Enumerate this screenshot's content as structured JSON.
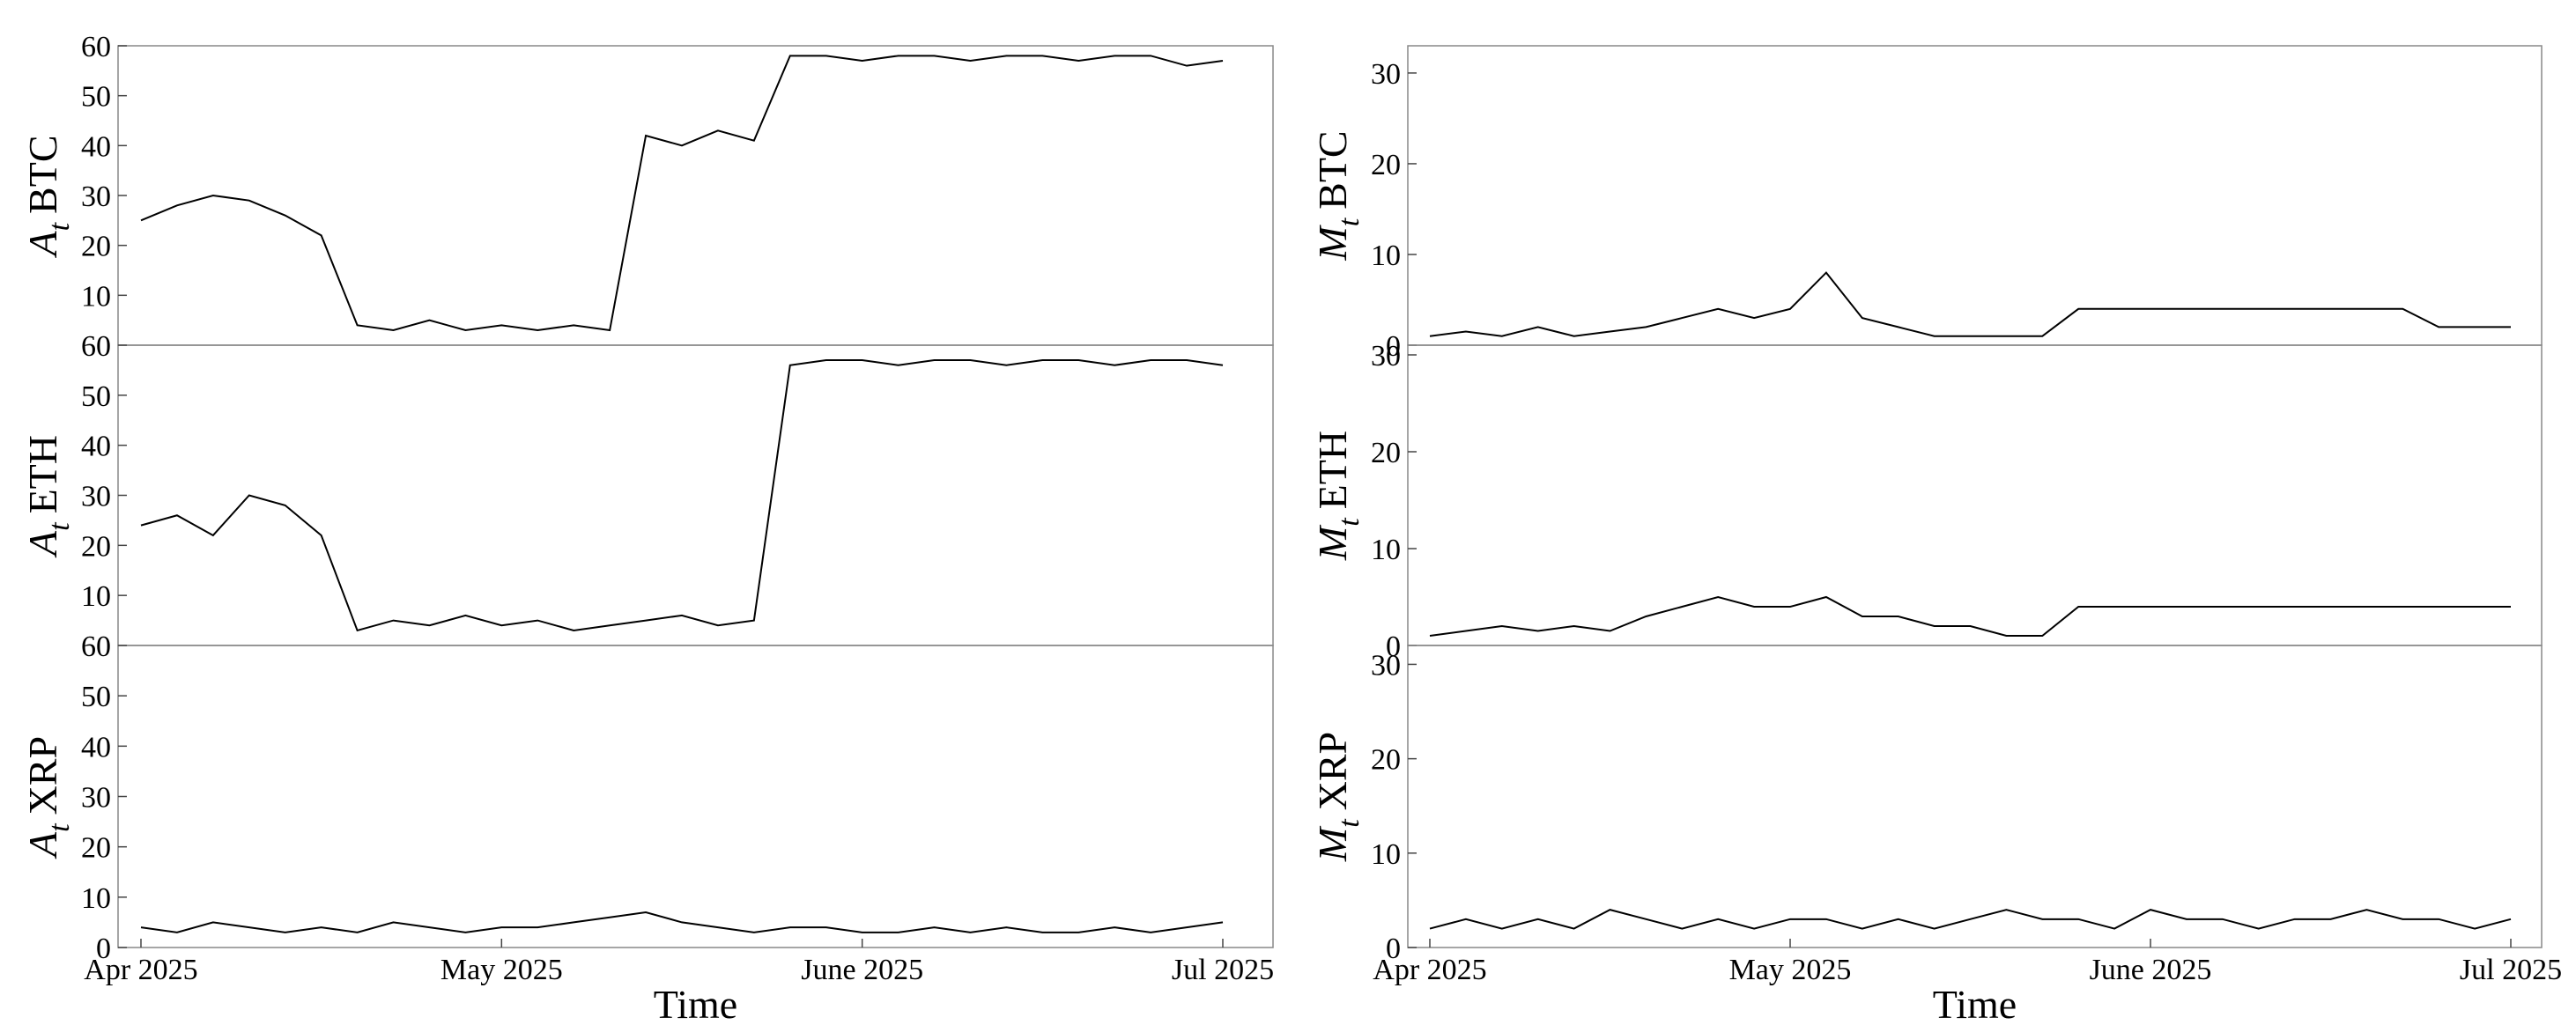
{
  "chart_data": [
    {
      "type": "line",
      "ylabel_symbol": "A",
      "ylabel_subscript": "t",
      "ylabel_asset": "BTC",
      "color": "#000000",
      "ylim": [
        0,
        60
      ],
      "yticks": [
        10,
        20,
        30,
        40,
        50,
        60
      ],
      "values": [
        25,
        28,
        30,
        29,
        26,
        22,
        4,
        3,
        5,
        3,
        4,
        3,
        4,
        3,
        42,
        40,
        43,
        41,
        58,
        58,
        57,
        58,
        58,
        57,
        58,
        58,
        57,
        58,
        58,
        56,
        57
      ]
    },
    {
      "type": "line",
      "ylabel_symbol": "A",
      "ylabel_subscript": "t",
      "ylabel_asset": "ETH",
      "color": "#000000",
      "ylim": [
        0,
        60
      ],
      "yticks": [
        10,
        20,
        30,
        40,
        50,
        60
      ],
      "values": [
        24,
        26,
        22,
        30,
        28,
        22,
        3,
        5,
        4,
        6,
        4,
        5,
        3,
        4,
        5,
        6,
        4,
        5,
        56,
        57,
        57,
        56,
        57,
        57,
        56,
        57,
        57,
        56,
        57,
        57,
        56
      ]
    },
    {
      "type": "line",
      "ylabel_symbol": "A",
      "ylabel_subscript": "t",
      "ylabel_asset": "XRP",
      "color": "#000000",
      "ylim": [
        0,
        60
      ],
      "yticks": [
        0,
        10,
        20,
        30,
        40,
        50,
        60
      ],
      "xlabel": "Time",
      "categories": [
        "Apr 2025",
        null,
        null,
        null,
        null,
        null,
        null,
        null,
        null,
        null,
        "May 2025",
        null,
        null,
        null,
        null,
        null,
        null,
        null,
        null,
        null,
        "June 2025",
        null,
        null,
        null,
        null,
        null,
        null,
        null,
        null,
        null,
        "Jul 2025"
      ],
      "values": [
        4,
        3,
        5,
        4,
        3,
        4,
        3,
        5,
        4,
        3,
        4,
        4,
        5,
        6,
        7,
        5,
        4,
        3,
        4,
        4,
        3,
        3,
        4,
        3,
        4,
        3,
        3,
        4,
        3,
        4,
        5
      ]
    },
    {
      "type": "line",
      "ylabel_symbol": "M",
      "ylabel_subscript": "t",
      "ylabel_asset": "BTC",
      "color": "#000000",
      "ylim": [
        0,
        33
      ],
      "yticks": [
        0,
        10,
        20,
        30
      ],
      "values": [
        1,
        1.5,
        1,
        2,
        1,
        1.5,
        2,
        3,
        4,
        3,
        4,
        8,
        3,
        2,
        1,
        1,
        1,
        1,
        4,
        4,
        4,
        4,
        4,
        4,
        4,
        4,
        4,
        4,
        2,
        2,
        2
      ]
    },
    {
      "type": "line",
      "ylabel_symbol": "M",
      "ylabel_subscript": "t",
      "ylabel_asset": "ETH",
      "color": "#000000",
      "ylim": [
        0,
        31
      ],
      "yticks": [
        0,
        10,
        20,
        30
      ],
      "values": [
        1,
        1.5,
        2,
        1.5,
        2,
        1.5,
        3,
        4,
        5,
        4,
        4,
        5,
        3,
        3,
        2,
        2,
        1,
        1,
        4,
        4,
        4,
        4,
        4,
        4,
        4,
        4,
        4,
        4,
        4,
        4,
        4
      ]
    },
    {
      "type": "line",
      "ylabel_symbol": "M",
      "ylabel_subscript": "t",
      "ylabel_asset": "XRP",
      "color": "#000000",
      "ylim": [
        0,
        32
      ],
      "yticks": [
        0,
        10,
        20,
        30
      ],
      "xlabel": "Time",
      "categories": [
        "Apr 2025",
        null,
        null,
        null,
        null,
        null,
        null,
        null,
        null,
        null,
        "May 2025",
        null,
        null,
        null,
        null,
        null,
        null,
        null,
        null,
        null,
        "June 2025",
        null,
        null,
        null,
        null,
        null,
        null,
        null,
        null,
        null,
        "Jul 2025"
      ],
      "values": [
        2,
        3,
        2,
        3,
        2,
        4,
        3,
        2,
        3,
        2,
        3,
        3,
        2,
        3,
        2,
        3,
        4,
        3,
        3,
        2,
        4,
        3,
        3,
        2,
        3,
        3,
        4,
        3,
        3,
        2,
        3
      ]
    }
  ]
}
